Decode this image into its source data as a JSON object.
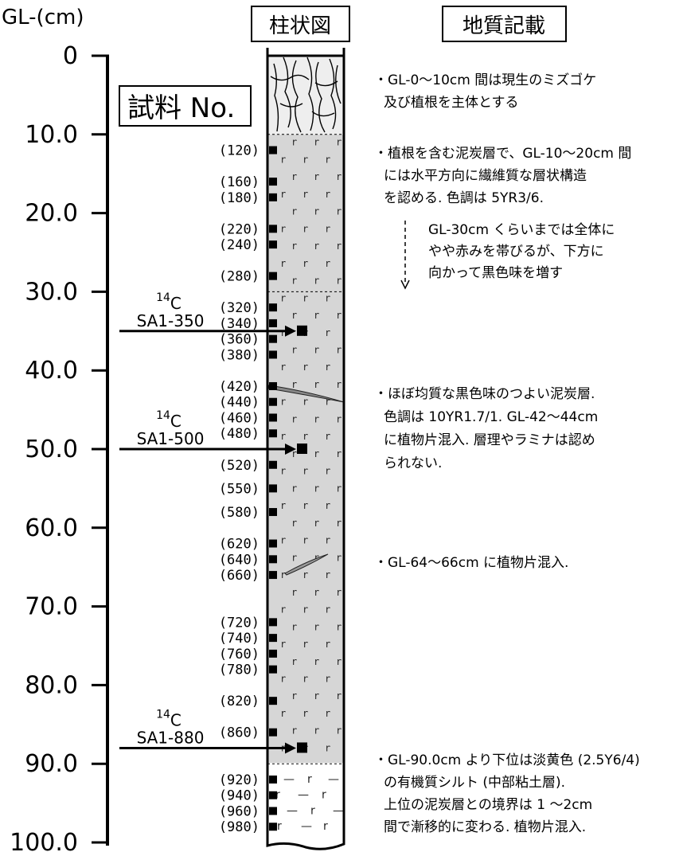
{
  "axis_unit": "GL-(cm)",
  "depth_labels": [
    "0",
    "10.0",
    "20.0",
    "30.0",
    "40.0",
    "50.0",
    "60.0",
    "70.0",
    "80.0",
    "90.0",
    "100.0"
  ],
  "column_header": "柱状図",
  "description_header": "地質記載",
  "sample_box_title": "試料 No.",
  "samples": [
    "(120)",
    "(160)",
    "(180)",
    "(220)",
    "(240)",
    "(280)",
    "(320)",
    "(340)",
    "(360)",
    "(380)",
    "(420)",
    "(440)",
    "(460)",
    "(480)",
    "(520)",
    "(550)",
    "(580)",
    "(620)",
    "(640)",
    "(660)",
    "(720)",
    "(740)",
    "(760)",
    "(780)",
    "(820)",
    "(860)",
    "(920)",
    "(940)",
    "(960)",
    "(980)"
  ],
  "sample_depths_cm": [
    12,
    16,
    18,
    22,
    24,
    28,
    32,
    34,
    36,
    38,
    42,
    44,
    46,
    48,
    52,
    55,
    58,
    62,
    64,
    66,
    72,
    74,
    76,
    78,
    82,
    86,
    92,
    94,
    96,
    98
  ],
  "c14_samples": [
    {
      "sup": "14",
      "element": "C",
      "label": "SA1-350",
      "depth_cm": 35
    },
    {
      "sup": "14",
      "element": "C",
      "label": "SA1-500",
      "depth_cm": 50
    },
    {
      "sup": "14",
      "element": "C",
      "label": "SA1-880",
      "depth_cm": 88
    }
  ],
  "layer_boundaries_cm": [
    10,
    30,
    90
  ],
  "descriptions": [
    {
      "lines": [
        "・GL-0〜10cm 間は現生のミズゴケ",
        "及び植根を主体とする"
      ]
    },
    {
      "lines": [
        "・植根を含む泥炭層で、GL-10〜20cm 間",
        "には水平方向に繊維質な層状構造",
        "を認める. 色調は 5YR3/6."
      ]
    },
    {
      "lines": [
        "GL-30cm くらいまでは全体に",
        "やや赤みを帯びるが、下方に",
        "向かって黒色味を増す"
      ]
    },
    {
      "lines": [
        "・ほぼ均質な黒色味のつよい泥炭層.",
        "色調は 10YR1.7/1.    GL-42〜44cm",
        "に植物片混入. 層理やラミナは認め",
        "られない."
      ]
    },
    {
      "lines": [
        "・GL-64〜66cm に植物片混入."
      ]
    },
    {
      "lines": [
        "・GL-90.0cm より下位は淡黄色 (2.5Y6/4)",
        "の有機質シルト (中部粘土層).",
        "上位の泥炭層との境界は 1 〜2cm",
        "間で漸移的に変わる. 植物片混入."
      ]
    }
  ]
}
